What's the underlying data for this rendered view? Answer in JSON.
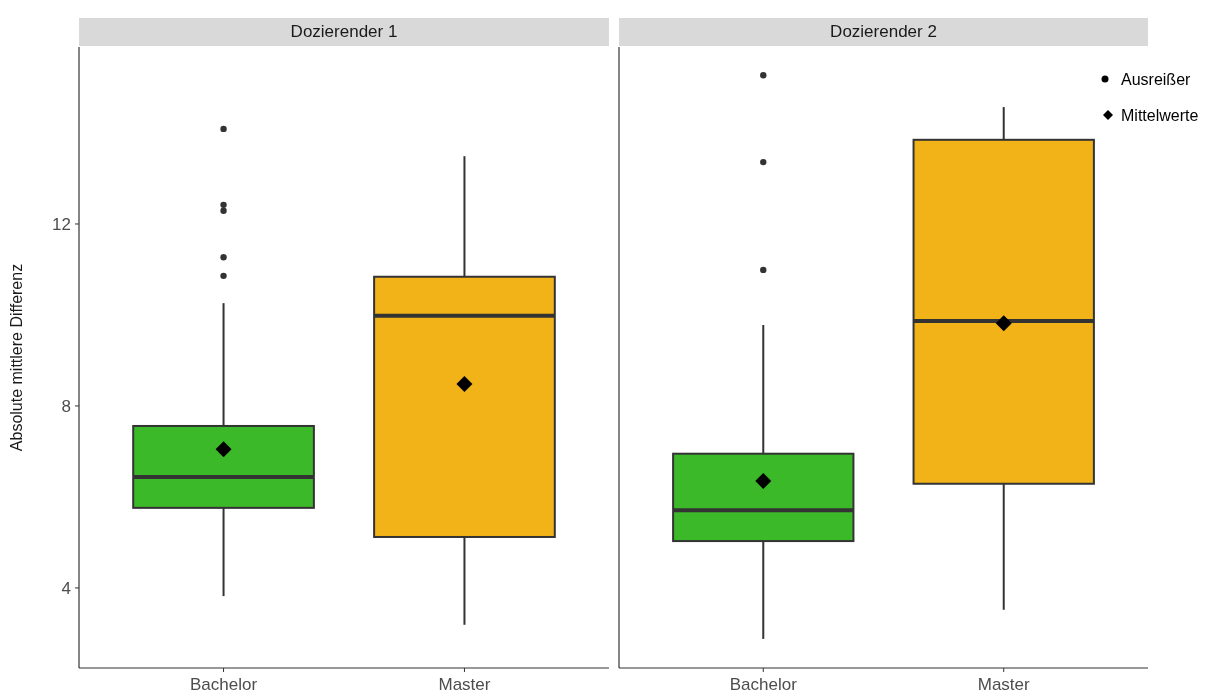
{
  "chart_data": [
    {
      "type": "box",
      "title": "Dozierender 1",
      "ylabel": "Absolute mittlere Differenz",
      "categories": [
        "Bachelor",
        "Master"
      ],
      "colors": [
        "#3cb928",
        "#f2b318"
      ],
      "ylim": [
        2.24,
        15.89
      ],
      "yticks": [
        4,
        8,
        12
      ],
      "grid": false,
      "boxes": [
        {
          "low": 3.82,
          "q1": 5.76,
          "median": 6.44,
          "q3": 7.56,
          "high": 10.26,
          "mean": 7.05,
          "outliers": [
            14.09,
            12.42,
            12.29,
            11.27,
            10.86
          ]
        },
        {
          "low": 3.19,
          "q1": 5.12,
          "median": 9.98,
          "q3": 10.84,
          "high": 13.49,
          "mean": 8.48
        }
      ]
    },
    {
      "type": "box",
      "title": "Dozierender 2",
      "categories": [
        "Bachelor",
        "Master"
      ],
      "colors": [
        "#3cb928",
        "#f2b318"
      ],
      "ylim": [
        2.24,
        15.89
      ],
      "tick_labels": "x",
      "grid": false,
      "annotations": [
        "Ausreißer",
        "Mittelwerte"
      ],
      "boxes": [
        {
          "low": 2.88,
          "q1": 5.03,
          "median": 5.71,
          "q3": 6.95,
          "high": 9.78,
          "mean": 6.35,
          "outliers": [
            15.27,
            13.36,
            10.99
          ]
        },
        {
          "low": 3.52,
          "q1": 6.29,
          "median": 9.87,
          "q3": 13.85,
          "high": 14.57,
          "mean": 9.82
        }
      ]
    }
  ]
}
